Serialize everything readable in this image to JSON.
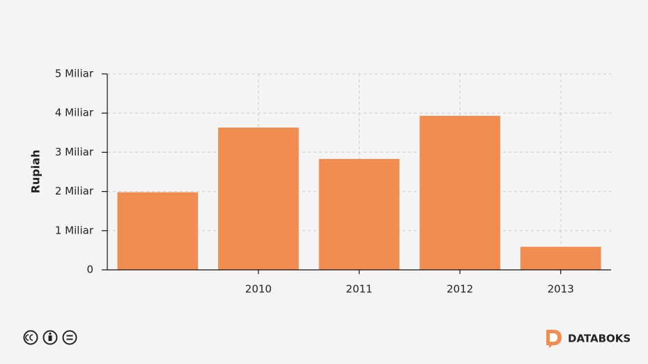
{
  "chart_data": {
    "type": "bar",
    "categories": [
      null,
      "2010",
      "2011",
      "2012",
      "2013"
    ],
    "values": [
      1.98,
      3.63,
      2.83,
      3.93,
      0.59
    ],
    "color": "#f28d52",
    "y_label": "Rupiah",
    "ylim": [
      0,
      5
    ],
    "yticks": [
      0,
      {
        "value": 1,
        "label": "1 Miliar"
      },
      {
        "value": 2,
        "label": "2 Miliar"
      },
      {
        "value": 3,
        "label": "3 Miliar"
      },
      {
        "value": 4,
        "label": "4 Miliar"
      },
      {
        "value": 5,
        "label": "5 Miliar"
      }
    ],
    "grid": true
  },
  "footer": {
    "brand": "DATABOKS"
  }
}
